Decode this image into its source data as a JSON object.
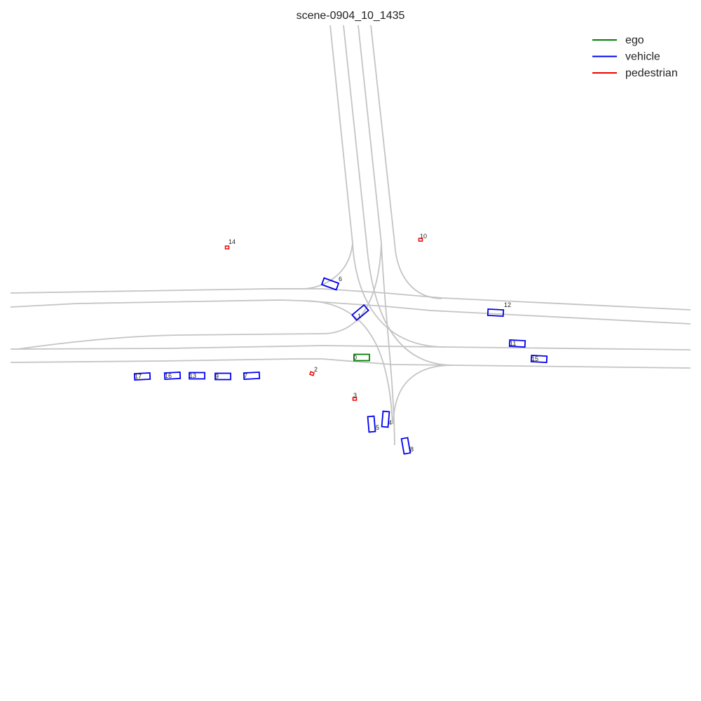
{
  "title": "scene-0904_10_1435",
  "legend": [
    {
      "key": "ego",
      "label": "ego",
      "color": "#008000"
    },
    {
      "key": "vehicle",
      "label": "vehicle",
      "color": "#0000ee"
    },
    {
      "key": "pedestrian",
      "label": "pedestrian",
      "color": "#ee0000"
    }
  ],
  "agents": [
    {
      "id": "0",
      "label": "0",
      "type": "ego"
    },
    {
      "id": "1",
      "label": "1",
      "type": "vehicle"
    },
    {
      "id": "2",
      "label": "2",
      "type": "pedestrian"
    },
    {
      "id": "3",
      "label": "3",
      "type": "pedestrian"
    },
    {
      "id": "4",
      "label": "4",
      "type": "vehicle"
    },
    {
      "id": "5",
      "label": "5",
      "type": "vehicle"
    },
    {
      "id": "6",
      "label": "6",
      "type": "vehicle"
    },
    {
      "id": "7",
      "label": "7",
      "type": "vehicle"
    },
    {
      "id": "8",
      "label": "8",
      "type": "vehicle"
    },
    {
      "id": "9",
      "label": "9",
      "type": "vehicle"
    },
    {
      "id": "10",
      "label": "10",
      "type": "pedestrian"
    },
    {
      "id": "11",
      "label": "11",
      "type": "vehicle"
    },
    {
      "id": "12",
      "label": "12",
      "type": "vehicle"
    },
    {
      "id": "13",
      "label": "13",
      "type": "vehicle"
    },
    {
      "id": "14",
      "label": "14",
      "type": "pedestrian"
    },
    {
      "id": "15",
      "label": "15",
      "type": "vehicle"
    },
    {
      "id": "16",
      "label": "16",
      "type": "vehicle"
    },
    {
      "id": "17",
      "label": "17",
      "type": "vehicle"
    }
  ]
}
